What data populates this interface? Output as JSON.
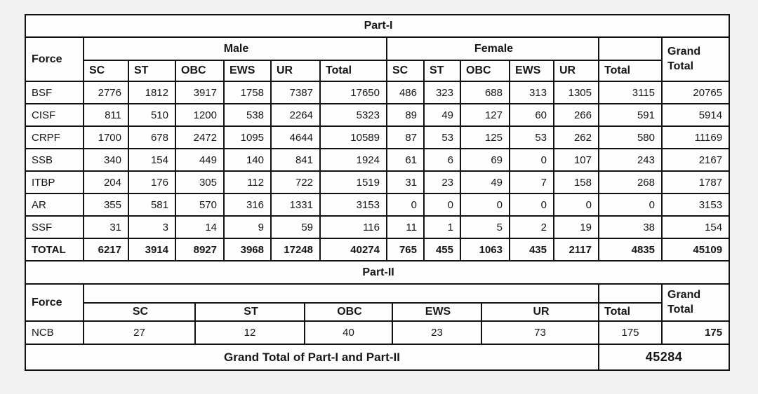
{
  "colors": {
    "border": "#121212",
    "cell_bg": "#fefefe",
    "page_bg": "#f2f2f2",
    "text": "#161616"
  },
  "part1": {
    "title": "Part-I",
    "force_header": "Force",
    "male_header": "Male",
    "female_header": "Female",
    "grand_total_header": "Grand Total",
    "sub_headers": [
      "SC",
      "ST",
      "OBC",
      "EWS",
      "UR",
      "Total",
      "SC",
      "ST",
      "OBC",
      "EWS",
      "UR",
      "Total"
    ],
    "rows": [
      {
        "force": "BSF",
        "values": [
          2776,
          1812,
          3917,
          1758,
          7387,
          17650,
          486,
          323,
          688,
          313,
          1305,
          3115,
          20765
        ]
      },
      {
        "force": "CISF",
        "values": [
          811,
          510,
          1200,
          538,
          2264,
          5323,
          89,
          49,
          127,
          60,
          266,
          591,
          5914
        ]
      },
      {
        "force": "CRPF",
        "values": [
          1700,
          678,
          2472,
          1095,
          4644,
          10589,
          87,
          53,
          125,
          53,
          262,
          580,
          11169
        ]
      },
      {
        "force": "SSB",
        "values": [
          340,
          154,
          449,
          140,
          841,
          1924,
          61,
          6,
          69,
          0,
          107,
          243,
          2167
        ]
      },
      {
        "force": "ITBP",
        "values": [
          204,
          176,
          305,
          112,
          722,
          1519,
          31,
          23,
          49,
          7,
          158,
          268,
          1787
        ]
      },
      {
        "force": "AR",
        "values": [
          355,
          581,
          570,
          316,
          1331,
          3153,
          0,
          0,
          0,
          0,
          0,
          0,
          3153
        ]
      },
      {
        "force": "SSF",
        "values": [
          31,
          3,
          14,
          9,
          59,
          116,
          11,
          1,
          5,
          2,
          19,
          38,
          154
        ]
      },
      {
        "force": "TOTAL",
        "values": [
          6217,
          3914,
          8927,
          3968,
          17248,
          40274,
          765,
          455,
          1063,
          435,
          2117,
          4835,
          45109
        ],
        "bold": true
      }
    ]
  },
  "part2": {
    "title": "Part-II",
    "force_header": "Force",
    "grand_total_header": "Grand Total",
    "sub_headers": [
      "SC",
      "ST",
      "OBC",
      "EWS",
      "UR",
      "Total"
    ],
    "rows": [
      {
        "force": "NCB",
        "values": [
          27,
          12,
          40,
          23,
          73,
          175,
          175
        ]
      }
    ],
    "footer": {
      "label": "Grand Total of Part-I and Part-II",
      "value": "45284"
    }
  }
}
